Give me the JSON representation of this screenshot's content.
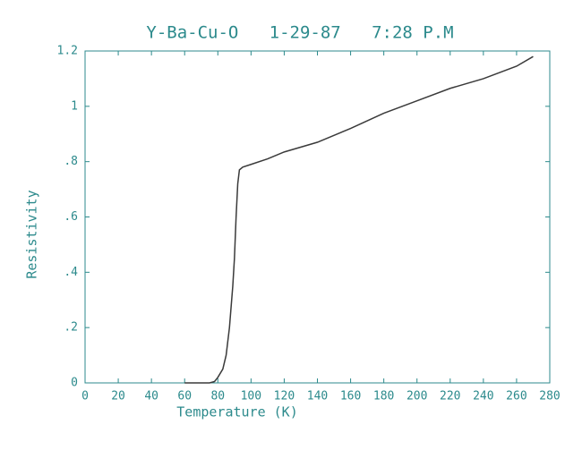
{
  "chart_data": {
    "type": "line",
    "title": "Y-Ba-Cu-O   1-29-87   7:28 P.M",
    "x_label": "Temperature (K)",
    "y_label": "Resistivity",
    "xlim": [
      0,
      280
    ],
    "ylim": [
      0,
      1.2
    ],
    "xticks": [
      0,
      20,
      40,
      60,
      80,
      100,
      120,
      140,
      160,
      180,
      200,
      220,
      240,
      260,
      280
    ],
    "yticks": [
      0,
      {
        "value": 0.2,
        "label": ".2"
      },
      {
        "value": 0.4,
        "label": ".4"
      },
      {
        "value": 0.6,
        "label": ".6"
      },
      {
        "value": 0.8,
        "label": ".8"
      },
      1,
      1.2
    ],
    "series": [
      {
        "color": "#3a3a3a",
        "x": [
          60,
          75,
          78,
          80,
          83,
          85,
          87,
          89,
          90,
          91,
          92,
          93,
          95,
          100,
          110,
          120,
          140,
          160,
          180,
          200,
          220,
          240,
          260,
          270
        ],
        "values": [
          0,
          0,
          0.005,
          0.02,
          0.05,
          0.1,
          0.2,
          0.35,
          0.45,
          0.6,
          0.72,
          0.77,
          0.78,
          0.79,
          0.81,
          0.835,
          0.87,
          0.92,
          0.975,
          1.02,
          1.065,
          1.1,
          1.145,
          1.18
        ]
      }
    ]
  }
}
